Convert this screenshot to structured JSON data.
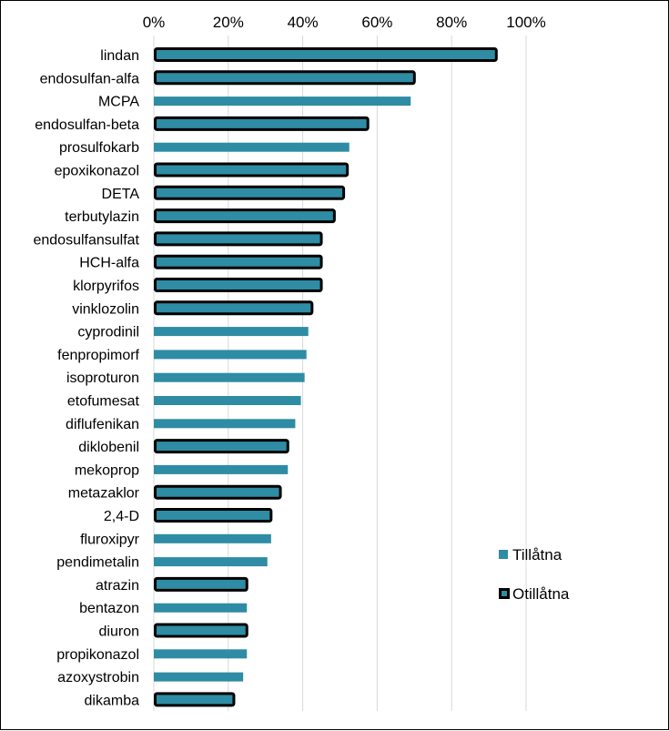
{
  "chart_data": {
    "type": "bar",
    "orientation": "horizontal",
    "x_axis_position": "top",
    "xlim": [
      0,
      100
    ],
    "xticks": [
      "0%",
      "20%",
      "40%",
      "60%",
      "80%",
      "100%"
    ],
    "grid": true,
    "legend_placement": "right",
    "colors": {
      "bar_fill": "#2E8CA4",
      "outline": "#000000",
      "grid": "#D9D9D9"
    },
    "series": [
      {
        "name": "Tillåtna",
        "style": "plain"
      },
      {
        "name": "Otillåtna",
        "style": "outlined"
      }
    ],
    "categories": [
      "lindan",
      "endosulfan-alfa",
      "MCPA",
      "endosulfan-beta",
      "prosulfokarb",
      "epoxikonazol",
      "DETA",
      "terbutylazin",
      "endosulfansulfat",
      "HCH-alfa",
      "klorpyrifos",
      "vinklozolin",
      "cyprodinil",
      "fenpropimorf",
      "isoproturon",
      "etofumesat",
      "diflufenikan",
      "diklobenil",
      "mekoprop",
      "metazaklor",
      "2,4-D",
      "fluroxipyr",
      "pendimetalin",
      "atrazin",
      "bentazon",
      "diuron",
      "propikonazol",
      "azoxystrobin",
      "dikamba"
    ],
    "values": [
      92,
      70,
      69,
      57.5,
      52.5,
      52,
      51,
      48.5,
      45,
      45,
      45,
      42.5,
      41.5,
      41,
      40.5,
      39.5,
      38,
      36,
      36,
      34,
      31.5,
      31.5,
      30.5,
      25,
      25,
      25,
      25,
      24,
      21.5
    ],
    "category_series": [
      "Otillåtna",
      "Otillåtna",
      "Tillåtna",
      "Otillåtna",
      "Tillåtna",
      "Otillåtna",
      "Otillåtna",
      "Otillåtna",
      "Otillåtna",
      "Otillåtna",
      "Otillåtna",
      "Otillåtna",
      "Tillåtna",
      "Tillåtna",
      "Tillåtna",
      "Tillåtna",
      "Tillåtna",
      "Otillåtna",
      "Tillåtna",
      "Otillåtna",
      "Otillåtna",
      "Tillåtna",
      "Tillåtna",
      "Otillåtna",
      "Tillåtna",
      "Otillåtna",
      "Tillåtna",
      "Tillåtna",
      "Otillåtna"
    ]
  }
}
